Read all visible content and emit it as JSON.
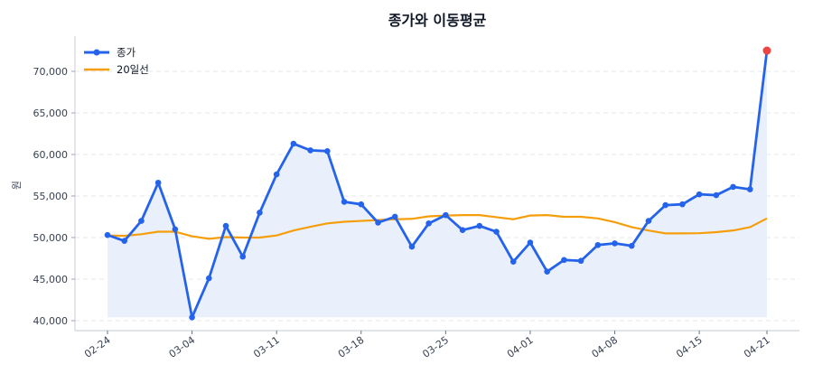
{
  "chart_data": {
    "type": "line",
    "title": "종가와 이동평균",
    "xlabel": "",
    "ylabel": "원",
    "ylim": [
      38800,
      74240
    ],
    "grid": "y-dashed",
    "legend_placement": "top-left",
    "x": [
      "02-24",
      "02-25",
      "02-26",
      "02-27",
      "02-28",
      "03-04",
      "03-05",
      "03-06",
      "03-07",
      "03-10",
      "03-11",
      "03-12",
      "03-13",
      "03-14",
      "03-17",
      "03-18",
      "03-19",
      "03-20",
      "03-21",
      "03-24",
      "03-25",
      "03-26",
      "03-27",
      "03-28",
      "03-31",
      "04-01",
      "04-02",
      "04-03",
      "04-04",
      "04-07",
      "04-08",
      "04-09",
      "04-10",
      "04-11",
      "04-14",
      "04-15",
      "04-16",
      "04-17",
      "04-18",
      "04-21"
    ],
    "x_ticks": [
      "02-24",
      "03-04",
      "03-11",
      "03-18",
      "03-25",
      "04-01",
      "04-08",
      "04-15",
      "04-21"
    ],
    "y_ticks": [
      40000,
      45000,
      50000,
      55000,
      60000,
      65000,
      70000
    ],
    "y_tick_labels": [
      "40,000",
      "45,000",
      "50,000",
      "55,000",
      "60,000",
      "65,000",
      "70,000"
    ],
    "series": [
      {
        "name": "종가",
        "color": "#2563eb",
        "fill": "#eaf0fb",
        "markers": true,
        "highlight_last_color": "#ef4444",
        "values": [
          50300,
          49600,
          52000,
          56600,
          51000,
          40400,
          45100,
          51400,
          47700,
          53000,
          57600,
          61300,
          60500,
          60400,
          54300,
          54000,
          51800,
          52500,
          48900,
          51700,
          52700,
          50900,
          51400,
          50700,
          47100,
          49400,
          45900,
          47300,
          47200,
          49100,
          49300,
          49000,
          52000,
          53900,
          54000,
          55200,
          55100,
          56100,
          55800,
          72500
        ]
      },
      {
        "name": "20일선",
        "color": "#f59e0b",
        "markers": false,
        "values": [
          50250,
          50200,
          50400,
          50700,
          50700,
          50150,
          49850,
          50050,
          50000,
          50000,
          50250,
          50850,
          51300,
          51700,
          51900,
          52000,
          52100,
          52200,
          52250,
          52550,
          52650,
          52700,
          52700,
          52450,
          52200,
          52650,
          52700,
          52500,
          52500,
          52300,
          51850,
          51250,
          50850,
          50500,
          50500,
          50520,
          50650,
          50850,
          51250,
          52300
        ]
      }
    ]
  }
}
